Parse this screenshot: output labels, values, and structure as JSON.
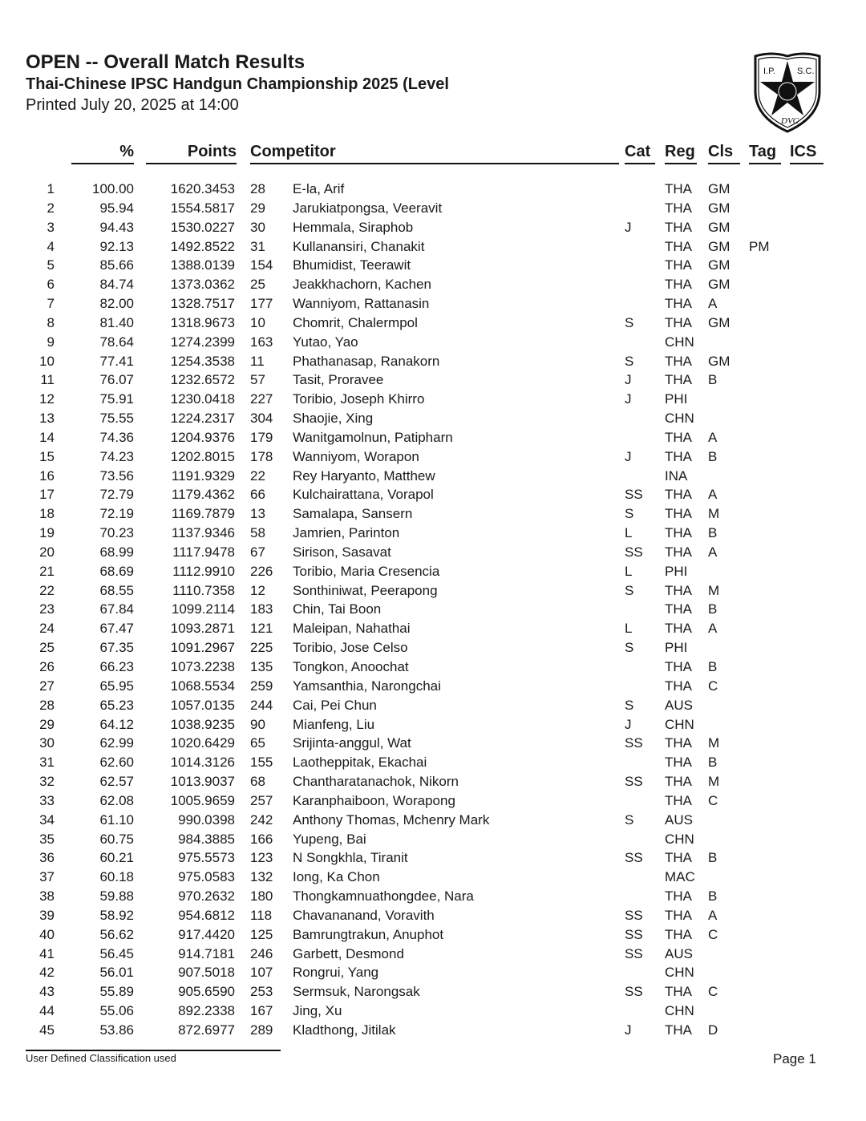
{
  "header": {
    "title": "OPEN -- Overall Match Results",
    "subtitle": "Thai-Chinese IPSC Handgun Championship 2025 (Level",
    "printed": "Printed July 20, 2025 at 14:00",
    "logo_text": "I.P.S.C. DVC"
  },
  "columns": {
    "pct": "%",
    "points": "Points",
    "competitor": "Competitor",
    "cat": "Cat",
    "reg": "Reg",
    "cls": "Cls",
    "tag": "Tag",
    "ics": "ICS"
  },
  "rows": [
    [
      "1",
      "100.00",
      "1620.3453",
      "28",
      "E-la, Arif",
      "",
      "THA",
      "GM",
      ""
    ],
    [
      "2",
      "95.94",
      "1554.5817",
      "29",
      "Jarukiatpongsa, Veeravit",
      "",
      "THA",
      "GM",
      ""
    ],
    [
      "3",
      "94.43",
      "1530.0227",
      "30",
      "Hemmala, Siraphob",
      "J",
      "THA",
      "GM",
      ""
    ],
    [
      "4",
      "92.13",
      "1492.8522",
      "31",
      "Kullanansiri, Chanakit",
      "",
      "THA",
      "GM",
      "PM"
    ],
    [
      "5",
      "85.66",
      "1388.0139",
      "154",
      "Bhumidist, Teerawit",
      "",
      "THA",
      "GM",
      ""
    ],
    [
      "6",
      "84.74",
      "1373.0362",
      "25",
      "Jeakkhachorn, Kachen",
      "",
      "THA",
      "GM",
      ""
    ],
    [
      "7",
      "82.00",
      "1328.7517",
      "177",
      "Wanniyom, Rattanasin",
      "",
      "THA",
      "A",
      ""
    ],
    [
      "8",
      "81.40",
      "1318.9673",
      "10",
      "Chomrit, Chalermpol",
      "S",
      "THA",
      "GM",
      ""
    ],
    [
      "9",
      "78.64",
      "1274.2399",
      "163",
      "Yutao, Yao",
      "",
      "CHN",
      "",
      ""
    ],
    [
      "10",
      "77.41",
      "1254.3538",
      "11",
      "Phathanasap, Ranakorn",
      "S",
      "THA",
      "GM",
      ""
    ],
    [
      "11",
      "76.07",
      "1232.6572",
      "57",
      "Tasit, Proravee",
      "J",
      "THA",
      "B",
      ""
    ],
    [
      "12",
      "75.91",
      "1230.0418",
      "227",
      "Toribio, Joseph Khirro",
      "J",
      "PHI",
      "",
      ""
    ],
    [
      "13",
      "75.55",
      "1224.2317",
      "304",
      "Shaojie, Xing",
      "",
      "CHN",
      "",
      ""
    ],
    [
      "14",
      "74.36",
      "1204.9376",
      "179",
      "Wanitgamolnun, Patipharn",
      "",
      "THA",
      "A",
      ""
    ],
    [
      "15",
      "74.23",
      "1202.8015",
      "178",
      "Wanniyom, Worapon",
      "J",
      "THA",
      "B",
      ""
    ],
    [
      "16",
      "73.56",
      "1191.9329",
      "22",
      "Rey Haryanto, Matthew",
      "",
      "INA",
      "",
      ""
    ],
    [
      "17",
      "72.79",
      "1179.4362",
      "66",
      "Kulchairattana, Vorapol",
      "SS",
      "THA",
      "A",
      ""
    ],
    [
      "18",
      "72.19",
      "1169.7879",
      "13",
      "Samalapa, Sansern",
      "S",
      "THA",
      "M",
      ""
    ],
    [
      "19",
      "70.23",
      "1137.9346",
      "58",
      "Jamrien, Parinton",
      "L",
      "THA",
      "B",
      ""
    ],
    [
      "20",
      "68.99",
      "1117.9478",
      "67",
      "Sirison, Sasavat",
      "SS",
      "THA",
      "A",
      ""
    ],
    [
      "21",
      "68.69",
      "1112.9910",
      "226",
      "Toribio, Maria Cresencia",
      "L",
      "PHI",
      "",
      ""
    ],
    [
      "22",
      "68.55",
      "1110.7358",
      "12",
      "Sonthiniwat, Peerapong",
      "S",
      "THA",
      "M",
      ""
    ],
    [
      "23",
      "67.84",
      "1099.2114",
      "183",
      "Chin, Tai Boon",
      "",
      "THA",
      "B",
      ""
    ],
    [
      "24",
      "67.47",
      "1093.2871",
      "121",
      "Maleipan, Nahathai",
      "L",
      "THA",
      "A",
      ""
    ],
    [
      "25",
      "67.35",
      "1091.2967",
      "225",
      "Toribio, Jose Celso",
      "S",
      "PHI",
      "",
      ""
    ],
    [
      "26",
      "66.23",
      "1073.2238",
      "135",
      "Tongkon, Anoochat",
      "",
      "THA",
      "B",
      ""
    ],
    [
      "27",
      "65.95",
      "1068.5534",
      "259",
      "Yamsanthia, Narongchai",
      "",
      "THA",
      "C",
      ""
    ],
    [
      "28",
      "65.23",
      "1057.0135",
      "244",
      "Cai, Pei Chun",
      "S",
      "AUS",
      "",
      ""
    ],
    [
      "29",
      "64.12",
      "1038.9235",
      "90",
      "Mianfeng, Liu",
      "J",
      "CHN",
      "",
      ""
    ],
    [
      "30",
      "62.99",
      "1020.6429",
      "65",
      "Srijinta-anggul, Wat",
      "SS",
      "THA",
      "M",
      ""
    ],
    [
      "31",
      "62.60",
      "1014.3126",
      "155",
      "Laotheppitak, Ekachai",
      "",
      "THA",
      "B",
      ""
    ],
    [
      "32",
      "62.57",
      "1013.9037",
      "68",
      "Chantharatanachok, Nikorn",
      "SS",
      "THA",
      "M",
      ""
    ],
    [
      "33",
      "62.08",
      "1005.9659",
      "257",
      "Karanphaiboon, Worapong",
      "",
      "THA",
      "C",
      ""
    ],
    [
      "34",
      "61.10",
      "990.0398",
      "242",
      "Anthony Thomas, Mchenry Mark",
      "S",
      "AUS",
      "",
      ""
    ],
    [
      "35",
      "60.75",
      "984.3885",
      "166",
      "Yupeng, Bai",
      "",
      "CHN",
      "",
      ""
    ],
    [
      "36",
      "60.21",
      "975.5573",
      "123",
      "N  Songkhla, Tiranit",
      "SS",
      "THA",
      "B",
      ""
    ],
    [
      "37",
      "60.18",
      "975.0583",
      "132",
      "Iong, Ka Chon",
      "",
      "MAC",
      "",
      ""
    ],
    [
      "38",
      "59.88",
      "970.2632",
      "180",
      "Thongkamnuathongdee, Nara",
      "",
      "THA",
      "B",
      ""
    ],
    [
      "39",
      "58.92",
      "954.6812",
      "118",
      "Chavananand, Voravith",
      "SS",
      "THA",
      "A",
      ""
    ],
    [
      "40",
      "56.62",
      "917.4420",
      "125",
      "Bamrungtrakun, Anuphot",
      "SS",
      "THA",
      "C",
      ""
    ],
    [
      "41",
      "56.45",
      "914.7181",
      "246",
      "Garbett, Desmond",
      "SS",
      "AUS",
      "",
      ""
    ],
    [
      "42",
      "56.01",
      "907.5018",
      "107",
      "Rongrui, Yang",
      "",
      "CHN",
      "",
      ""
    ],
    [
      "43",
      "55.89",
      "905.6590",
      "253",
      "Sermsuk, Narongsak",
      "SS",
      "THA",
      "C",
      ""
    ],
    [
      "44",
      "55.06",
      "892.2338",
      "167",
      "Jing, Xu",
      "",
      "CHN",
      "",
      ""
    ],
    [
      "45",
      "53.86",
      "872.6977",
      "289",
      "Kladthong, Jitilak",
      "J",
      "THA",
      "D",
      ""
    ]
  ],
  "footer": {
    "note": "User Defined Classification used",
    "page": "Page 1"
  }
}
